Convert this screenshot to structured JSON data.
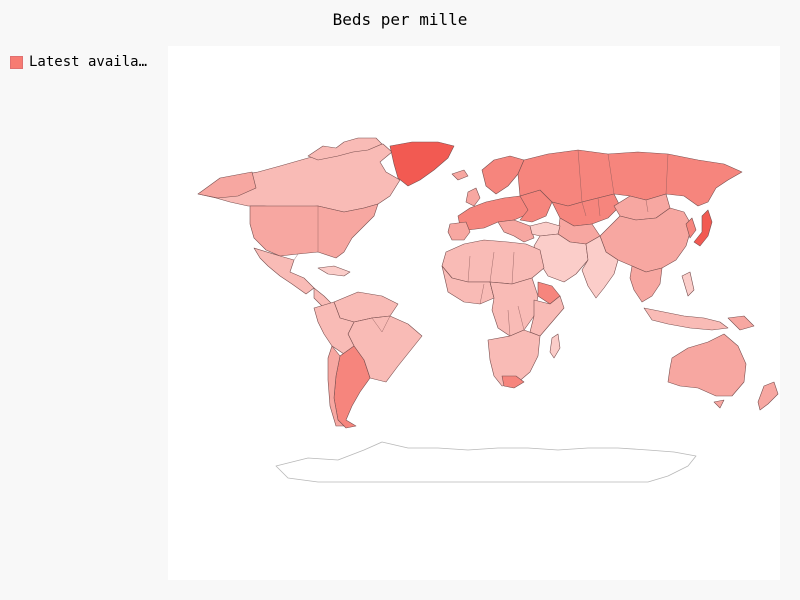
{
  "map": {
    "title": "Beds per mille",
    "legend": {
      "label": "Latest available",
      "color": "#f77b72"
    },
    "palette": {
      "max": "#f25a52",
      "high": "#f6857d",
      "mid": "#f7a7a1",
      "low": "#f9bbb6",
      "lowest": "#fbcdc9",
      "no_data": "#ffffff"
    },
    "regions": [
      {
        "name": "Greenland",
        "level": "max"
      },
      {
        "name": "Russia",
        "level": "high"
      },
      {
        "name": "Japan",
        "level": "max"
      },
      {
        "name": "Argentina",
        "level": "high"
      },
      {
        "name": "Canada",
        "level": "low"
      },
      {
        "name": "United States",
        "level": "mid"
      },
      {
        "name": "Mexico",
        "level": "low"
      },
      {
        "name": "Brazil",
        "level": "low"
      },
      {
        "name": "Northern Europe",
        "level": "high"
      },
      {
        "name": "China",
        "level": "mid"
      },
      {
        "name": "Mongolia",
        "level": "mid"
      },
      {
        "name": "Kazakhstan",
        "level": "high"
      },
      {
        "name": "India",
        "level": "lowest"
      },
      {
        "name": "Africa",
        "level": "low"
      },
      {
        "name": "Ethiopia",
        "level": "high"
      },
      {
        "name": "Australia",
        "level": "mid"
      },
      {
        "name": "Antarctica",
        "level": "no_data"
      }
    ]
  }
}
